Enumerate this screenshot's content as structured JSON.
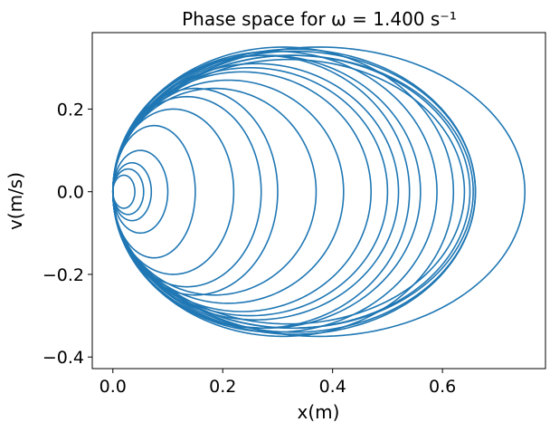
{
  "chart_data": {
    "type": "line",
    "title": "Phase space for ω = 1.400 s⁻¹",
    "xlabel": "x(m)",
    "ylabel": "v(m/s)",
    "xlim": [
      -0.0375,
      0.7875
    ],
    "ylim": [
      -0.428,
      0.385
    ],
    "xticks": [
      "0.0",
      "0.2",
      "0.4",
      "0.6"
    ],
    "xtick_values": [
      0.0,
      0.2,
      0.4,
      0.6
    ],
    "yticks": [
      "0.2",
      "0.0",
      "−0.2",
      "−0.4"
    ],
    "ytick_values": [
      0.2,
      0.0,
      -0.2,
      -0.4
    ],
    "grid": false,
    "legend": "none",
    "color": "#1f77b4",
    "series": [
      {
        "orbits": [
          {
            "cx": 0.375,
            "rx": 0.375,
            "ry": 0.35,
            "phase": 0.0
          },
          {
            "cx": 0.33,
            "rx": 0.33,
            "ry": 0.345,
            "phase": 0.4
          },
          {
            "cx": 0.33,
            "rx": 0.33,
            "ry": 0.34,
            "phase": 1.1
          },
          {
            "cx": 0.328,
            "rx": 0.328,
            "ry": 0.33,
            "phase": 0.8
          },
          {
            "cx": 0.325,
            "rx": 0.325,
            "ry": 0.33,
            "phase": 2.0
          },
          {
            "cx": 0.32,
            "rx": 0.32,
            "ry": 0.32,
            "phase": 1.5
          },
          {
            "cx": 0.31,
            "rx": 0.31,
            "ry": 0.35,
            "phase": 2.6
          },
          {
            "cx": 0.295,
            "rx": 0.295,
            "ry": 0.34,
            "phase": 0.2
          },
          {
            "cx": 0.28,
            "rx": 0.28,
            "ry": 0.33,
            "phase": 3.0
          },
          {
            "cx": 0.27,
            "rx": 0.27,
            "ry": 0.33,
            "phase": 1.9
          },
          {
            "cx": 0.26,
            "rx": 0.26,
            "ry": 0.31,
            "phase": 0.6
          },
          {
            "cx": 0.25,
            "rx": 0.25,
            "ry": 0.3,
            "phase": 2.3
          },
          {
            "cx": 0.235,
            "rx": 0.235,
            "ry": 0.29,
            "phase": 1.2
          },
          {
            "cx": 0.21,
            "rx": 0.21,
            "ry": 0.27,
            "phase": 2.8
          },
          {
            "cx": 0.185,
            "rx": 0.185,
            "ry": 0.25,
            "phase": 0.9
          },
          {
            "cx": 0.15,
            "rx": 0.15,
            "ry": 0.25,
            "phase": 1.7
          },
          {
            "cx": 0.135,
            "rx": 0.135,
            "ry": 0.23,
            "phase": 2.2
          },
          {
            "cx": 0.11,
            "rx": 0.11,
            "ry": 0.2,
            "phase": 0.5
          },
          {
            "cx": 0.075,
            "rx": 0.075,
            "ry": 0.16,
            "phase": 1.4
          },
          {
            "cx": 0.05,
            "rx": 0.05,
            "ry": 0.1,
            "phase": 2.5
          },
          {
            "cx": 0.035,
            "rx": 0.035,
            "ry": 0.07,
            "phase": 0.3
          },
          {
            "cx": 0.028,
            "rx": 0.028,
            "ry": 0.055,
            "phase": 1.0
          },
          {
            "cx": 0.02,
            "rx": 0.02,
            "ry": 0.04,
            "phase": 2.0
          }
        ]
      }
    ]
  }
}
